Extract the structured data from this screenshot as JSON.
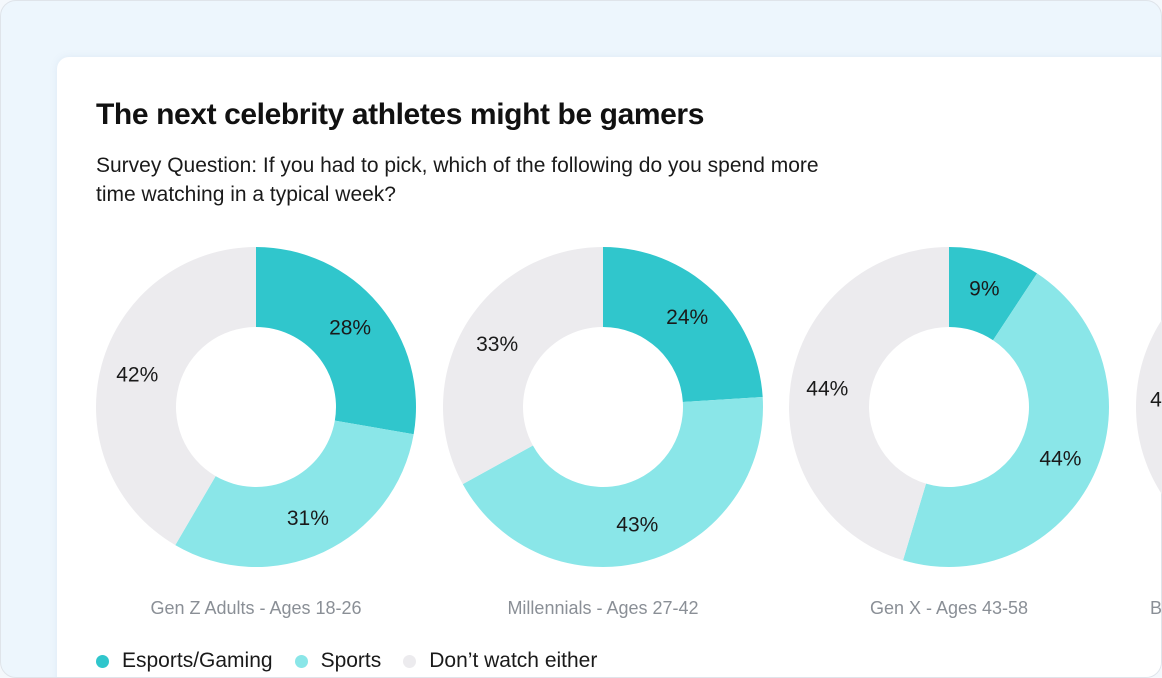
{
  "header": {
    "title": "The next celebrity athletes might be gamers",
    "subtitle": "Survey Question: If you had to pick, which of the following do you spend more time watching in a typical week?"
  },
  "chart_data": {
    "type": "pie",
    "variant": "donut",
    "title": "The next celebrity athletes might be gamers",
    "subtitle": "Survey Question: If you had to pick, which of the following do you spend more time watching in a typical week?",
    "series_names": [
      "Esports/Gaming",
      "Sports",
      "Don’t watch either"
    ],
    "colors": [
      "#30c6cc",
      "#8ae6e8",
      "#ecebee"
    ],
    "legend_position": "bottom-left",
    "charts": [
      {
        "label": "Gen Z Adults - Ages 18-26",
        "values": [
          28,
          31,
          42
        ],
        "value_labels": [
          "28%",
          "31%",
          "42%"
        ]
      },
      {
        "label": "Millennials - Ages 27-42",
        "values": [
          24,
          43,
          33
        ],
        "value_labels": [
          "24%",
          "43%",
          "33%"
        ]
      },
      {
        "label": "Gen X - Ages 43-58",
        "values": [
          9,
          44,
          44
        ],
        "value_labels": [
          "9%",
          "44%",
          "44%"
        ]
      },
      {
        "label": "B",
        "values": [
          null,
          null,
          null
        ],
        "value_labels": [
          "",
          "",
          "4"
        ],
        "partially_visible": true
      }
    ]
  },
  "legend": {
    "items": [
      {
        "label": "Esports/Gaming",
        "color": "#30c6cc"
      },
      {
        "label": "Sports",
        "color": "#8ae6e8"
      },
      {
        "label": "Don’t watch either",
        "color": "#ecebee"
      }
    ]
  }
}
